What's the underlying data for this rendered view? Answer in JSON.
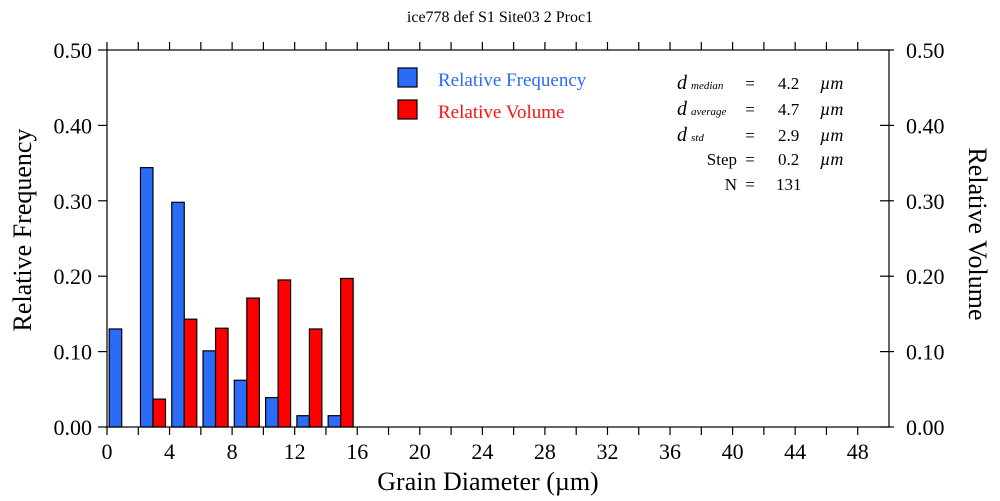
{
  "colors": {
    "frequency": "#2a6cf7",
    "volume": "#ff0000",
    "frequency_legend_text": "#2a6cf7",
    "volume_legend_text": "#ff1010"
  },
  "chart_data": {
    "type": "bar",
    "title": "ice778 def S1 Site03 2 Proc1",
    "xlabel": "Grain Diameter (µm)",
    "ylabel": "Relative Frequency",
    "ylabel_right": "Relative Volume",
    "xlim": [
      0,
      50
    ],
    "ylim": [
      0,
      0.5
    ],
    "ylim_right": [
      0,
      0.5
    ],
    "x_ticks": [
      0,
      4,
      8,
      12,
      16,
      20,
      24,
      28,
      32,
      36,
      40,
      44,
      48
    ],
    "x_tick_labels": [
      "0",
      "4",
      "8",
      "12",
      "16",
      "20",
      "24",
      "28",
      "32",
      "36",
      "40",
      "44",
      "48"
    ],
    "x_minor_step": 2,
    "y_ticks": [
      0,
      0.1,
      0.2,
      0.3,
      0.4,
      0.5
    ],
    "y_tick_labels": [
      "0.00",
      "0.10",
      "0.20",
      "0.30",
      "0.40",
      "0.50"
    ],
    "y_tick_labels_right": [
      "0.00",
      "0.10",
      "0.20",
      "0.30",
      "0.40",
      "0.50"
    ],
    "grid": false,
    "legend_position": "top-center",
    "bin_width": 2,
    "bin_starts": [
      0,
      2,
      4,
      6,
      8,
      10,
      12,
      14
    ],
    "series": [
      {
        "name": "Relative Frequency",
        "axis": "left",
        "values": [
          0.13,
          0.344,
          0.298,
          0.101,
          0.062,
          0.039,
          0.015,
          0.015
        ]
      },
      {
        "name": "Relative Volume",
        "axis": "right",
        "values": [
          0.0,
          0.037,
          0.143,
          0.131,
          0.171,
          0.195,
          0.13,
          0.197
        ]
      }
    ],
    "stats": [
      {
        "symbol": "d",
        "sub": "median",
        "eq": "=",
        "value": "4.2",
        "unit": "µm"
      },
      {
        "symbol": "d",
        "sub": "average",
        "eq": "=",
        "value": "4.7",
        "unit": "µm"
      },
      {
        "symbol": "d",
        "sub": "std",
        "eq": "=",
        "value": "2.9",
        "unit": "µm"
      },
      {
        "label": "Step",
        "eq": "=",
        "value": "0.2",
        "unit": "µm"
      },
      {
        "label": "N",
        "eq": "=",
        "value": "131",
        "unit": ""
      }
    ]
  }
}
